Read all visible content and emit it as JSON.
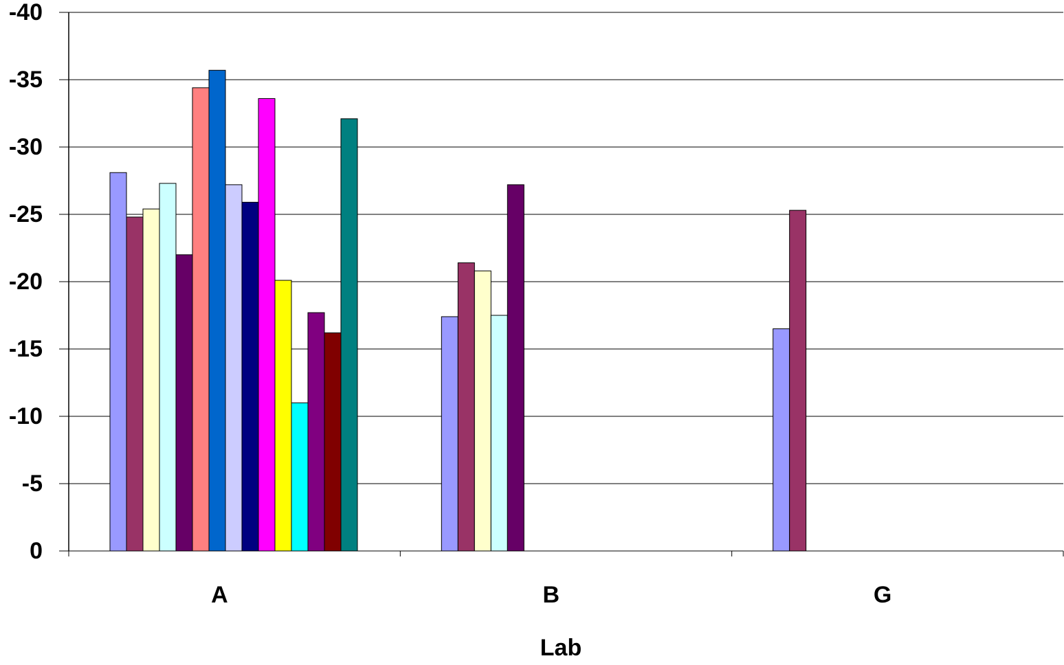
{
  "chart_data": {
    "type": "bar",
    "x_label": "Lab",
    "categories": [
      "A",
      "B",
      "G"
    ],
    "series": [
      {
        "color": "#9999FF",
        "values": [
          -28.1,
          -17.4,
          -16.5
        ]
      },
      {
        "color": "#993366",
        "values": [
          -24.8,
          -21.4,
          -25.3
        ]
      },
      {
        "color": "#FFFFCC",
        "values": [
          -25.4,
          -20.8,
          null
        ]
      },
      {
        "color": "#CCFFFF",
        "values": [
          -27.3,
          -17.5,
          null
        ]
      },
      {
        "color": "#660066",
        "values": [
          -22.0,
          -27.2,
          null
        ]
      },
      {
        "color": "#FF8080",
        "values": [
          -34.4,
          null,
          null
        ]
      },
      {
        "color": "#0066CC",
        "values": [
          -35.7,
          null,
          null
        ]
      },
      {
        "color": "#CCCCFF",
        "values": [
          -27.2,
          null,
          null
        ]
      },
      {
        "color": "#000080",
        "values": [
          -25.9,
          null,
          null
        ]
      },
      {
        "color": "#FF00FF",
        "values": [
          -33.6,
          null,
          null
        ]
      },
      {
        "color": "#FFFF00",
        "values": [
          -20.1,
          null,
          null
        ]
      },
      {
        "color": "#00FFFF",
        "values": [
          -11.0,
          null,
          null
        ]
      },
      {
        "color": "#800080",
        "values": [
          -17.7,
          null,
          null
        ]
      },
      {
        "color": "#800000",
        "values": [
          -16.2,
          null,
          null
        ]
      },
      {
        "color": "#008080",
        "values": [
          -32.1,
          null,
          null
        ]
      }
    ],
    "ylim": [
      0,
      -40
    ],
    "yticks": [
      0,
      -5,
      -10,
      -15,
      -20,
      -25,
      -30,
      -35,
      -40
    ],
    "grid": true
  }
}
